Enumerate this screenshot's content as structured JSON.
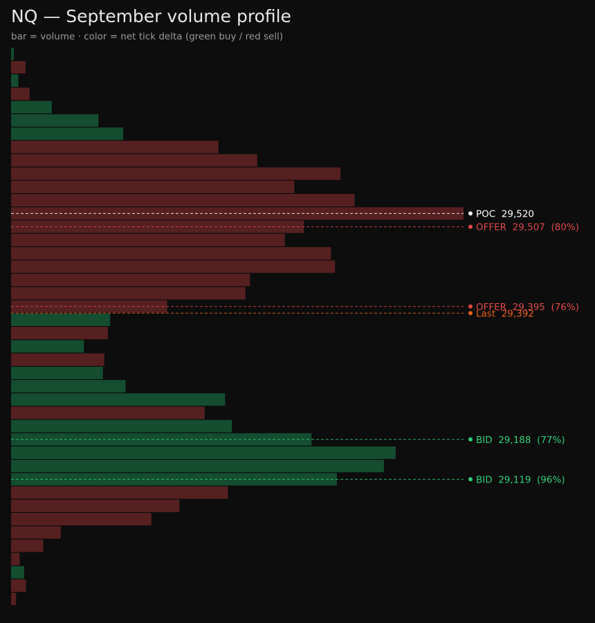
{
  "chart_data": {
    "type": "bar",
    "orientation": "horizontal",
    "title": "NQ — September volume profile",
    "subtitle": "bar = volume · color = net tick delta (green buy / red sell)",
    "xlim": [
      0,
      1000
    ],
    "bar_colors": {
      "buy": "#144d30",
      "sell": "#562021"
    },
    "bars": [
      {
        "volume": 6,
        "delta": "buy"
      },
      {
        "volume": 32,
        "delta": "sell"
      },
      {
        "volume": 16,
        "delta": "buy"
      },
      {
        "volume": 41,
        "delta": "sell"
      },
      {
        "volume": 90,
        "delta": "buy"
      },
      {
        "volume": 193,
        "delta": "buy"
      },
      {
        "volume": 248,
        "delta": "buy"
      },
      {
        "volume": 458,
        "delta": "sell"
      },
      {
        "volume": 544,
        "delta": "sell"
      },
      {
        "volume": 728,
        "delta": "sell"
      },
      {
        "volume": 626,
        "delta": "sell"
      },
      {
        "volume": 759,
        "delta": "sell"
      },
      {
        "volume": 1000,
        "delta": "sell"
      },
      {
        "volume": 647,
        "delta": "sell"
      },
      {
        "volume": 605,
        "delta": "sell"
      },
      {
        "volume": 707,
        "delta": "sell"
      },
      {
        "volume": 716,
        "delta": "sell"
      },
      {
        "volume": 528,
        "delta": "sell"
      },
      {
        "volume": 518,
        "delta": "sell"
      },
      {
        "volume": 345,
        "delta": "sell"
      },
      {
        "volume": 219,
        "delta": "buy"
      },
      {
        "volume": 214,
        "delta": "sell"
      },
      {
        "volume": 161,
        "delta": "buy"
      },
      {
        "volume": 206,
        "delta": "sell"
      },
      {
        "volume": 203,
        "delta": "buy"
      },
      {
        "volume": 253,
        "delta": "buy"
      },
      {
        "volume": 473,
        "delta": "buy"
      },
      {
        "volume": 428,
        "delta": "sell"
      },
      {
        "volume": 488,
        "delta": "buy"
      },
      {
        "volume": 664,
        "delta": "buy"
      },
      {
        "volume": 850,
        "delta": "buy"
      },
      {
        "volume": 824,
        "delta": "buy"
      },
      {
        "volume": 720,
        "delta": "buy"
      },
      {
        "volume": 479,
        "delta": "sell"
      },
      {
        "volume": 372,
        "delta": "sell"
      },
      {
        "volume": 310,
        "delta": "sell"
      },
      {
        "volume": 110,
        "delta": "sell"
      },
      {
        "volume": 71,
        "delta": "sell"
      },
      {
        "volume": 19,
        "delta": "sell"
      },
      {
        "volume": 29,
        "delta": "buy"
      },
      {
        "volume": 33,
        "delta": "sell"
      },
      {
        "volume": 11,
        "delta": "sell"
      }
    ],
    "levels": [
      {
        "label": "POC  29,520",
        "bar": 12,
        "color": "#ffffff",
        "text_color": "#ffffff"
      },
      {
        "label": "OFFER  29,507  (80%)",
        "bar": 13,
        "color": "#e0494a",
        "text_color": "#e0494a"
      },
      {
        "label": "OFFER  29,395  (76%)",
        "bar": 19,
        "color": "#e0494a",
        "text_color": "#e0494a"
      },
      {
        "label": "Last  29,392",
        "bar": 19.5,
        "color": "#e8601c",
        "text_color": "#e8601c"
      },
      {
        "label": "BID  29,188  (77%)",
        "bar": 29,
        "color": "#2fcf78",
        "text_color": "#2fcf78"
      },
      {
        "label": "BID  29,119  (96%)",
        "bar": 32,
        "color": "#2fcf78",
        "text_color": "#2fcf78"
      }
    ]
  }
}
